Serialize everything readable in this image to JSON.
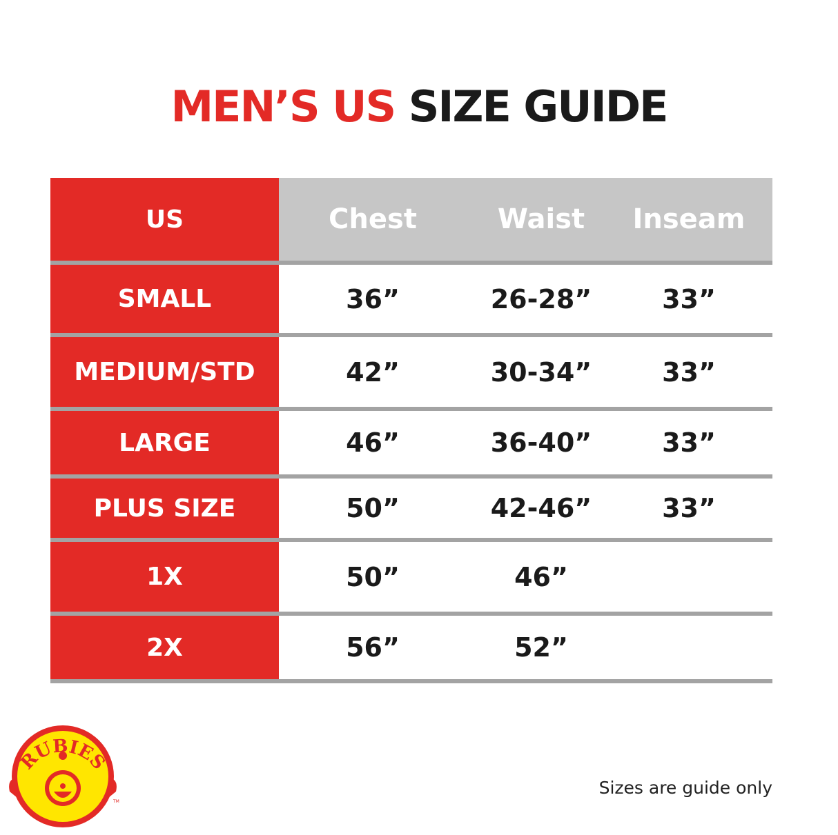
{
  "title": {
    "part1": "MEN’S US",
    "part2": "SIZE GUIDE"
  },
  "colors": {
    "accent": "#e32a26",
    "header_bg": "#c6c6c6",
    "separator": "#a3a3a3",
    "logo_yellow": "#ffe600"
  },
  "table": {
    "headers": [
      "US",
      "Chest",
      "Waist",
      "Inseam"
    ],
    "rows": [
      {
        "size": "SMALL",
        "chest": "36”",
        "waist": "26-28”",
        "inseam": "33”"
      },
      {
        "size": "MEDIUM/STD",
        "chest": "42”",
        "waist": "30-34”",
        "inseam": "33”"
      },
      {
        "size": "LARGE",
        "chest": "46”",
        "waist": "36-40”",
        "inseam": "33”"
      },
      {
        "size": "PLUS SIZE",
        "chest": "50”",
        "waist": "42-46”",
        "inseam": "33”"
      },
      {
        "size": "1X",
        "chest": "50”",
        "waist": "46”",
        "inseam": ""
      },
      {
        "size": "2X",
        "chest": "56”",
        "waist": "52”",
        "inseam": ""
      }
    ]
  },
  "note": "Sizes are guide only",
  "logo": {
    "text": "RUBIES",
    "tm": "TM"
  }
}
